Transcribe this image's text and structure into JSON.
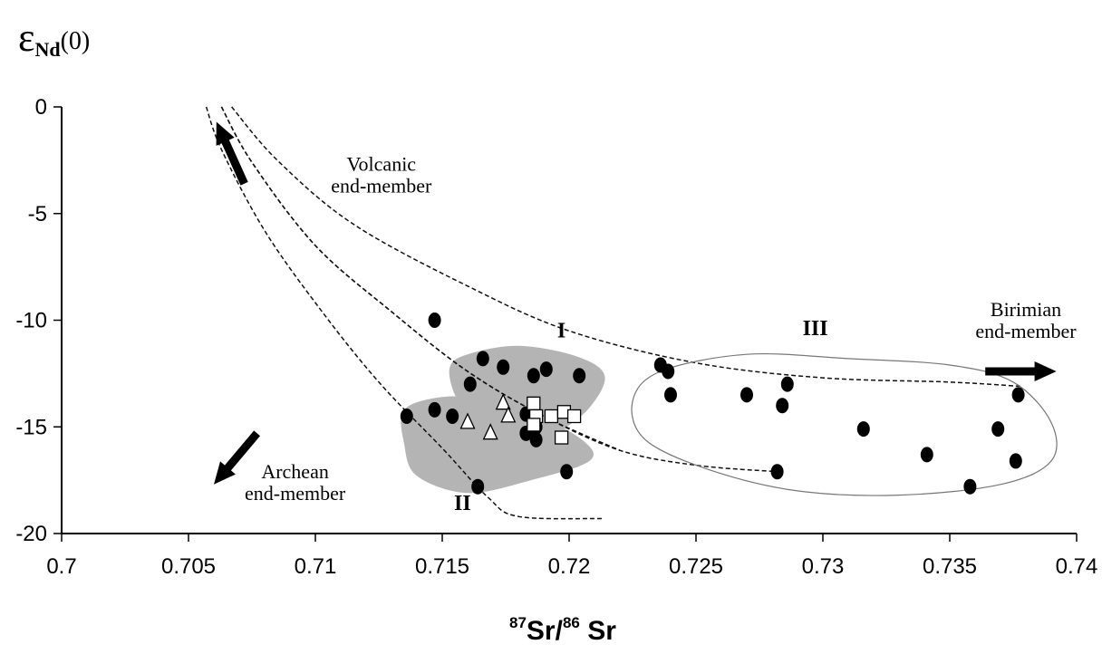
{
  "chart_data": {
    "type": "scatter",
    "title": "",
    "ylabel": {
      "base": "ε",
      "sub": "Nd",
      "suffix": "(0)"
    },
    "xlabel": {
      "sup1": "87",
      "mid": "Sr/",
      "sup2": "86",
      "end": " Sr"
    },
    "xlim": [
      0.7,
      0.74
    ],
    "ylim": [
      -20,
      0
    ],
    "x_ticks": [
      0.7,
      0.705,
      0.71,
      0.715,
      0.72,
      0.725,
      0.73,
      0.735,
      0.74
    ],
    "x_tick_labels": [
      "0.7",
      "0.705",
      "0.71",
      "0.715",
      "0.72",
      "0.725",
      "0.73",
      "0.735",
      "0.74"
    ],
    "y_ticks": [
      0,
      -5,
      -10,
      -15,
      -20
    ],
    "y_tick_labels": [
      "0",
      "-5",
      "-10",
      "-15",
      "-20"
    ],
    "grid": false,
    "series": [
      {
        "marker": "circle",
        "points": [
          [
            0.7147,
            -10.0
          ],
          [
            0.7166,
            -11.8
          ],
          [
            0.7174,
            -12.2
          ],
          [
            0.7161,
            -13.0
          ],
          [
            0.7186,
            -12.6
          ],
          [
            0.7191,
            -12.3
          ],
          [
            0.7204,
            -12.6
          ],
          [
            0.7136,
            -14.5
          ],
          [
            0.7147,
            -14.2
          ],
          [
            0.7154,
            -14.5
          ],
          [
            0.7183,
            -14.4
          ],
          [
            0.7187,
            -15.0
          ],
          [
            0.7183,
            -15.3
          ],
          [
            0.7187,
            -15.6
          ],
          [
            0.7199,
            -17.1
          ],
          [
            0.7164,
            -17.8
          ],
          [
            0.7236,
            -12.1
          ],
          [
            0.7239,
            -12.4
          ],
          [
            0.724,
            -13.5
          ],
          [
            0.727,
            -13.5
          ],
          [
            0.7284,
            -14.0
          ],
          [
            0.7286,
            -13.0
          ],
          [
            0.7282,
            -17.1
          ],
          [
            0.7316,
            -15.1
          ],
          [
            0.7341,
            -16.3
          ],
          [
            0.7358,
            -17.8
          ],
          [
            0.7377,
            -13.5
          ],
          [
            0.7369,
            -15.1
          ],
          [
            0.7376,
            -16.6
          ]
        ]
      },
      {
        "marker": "open-triangle",
        "points": [
          [
            0.7174,
            -13.9
          ],
          [
            0.7176,
            -14.5
          ],
          [
            0.716,
            -14.8
          ],
          [
            0.7169,
            -15.3
          ]
        ]
      },
      {
        "marker": "open-square",
        "points": [
          [
            0.7186,
            -13.9
          ],
          [
            0.7187,
            -14.5
          ],
          [
            0.7186,
            -14.9
          ],
          [
            0.7193,
            -14.5
          ],
          [
            0.7198,
            -14.3
          ],
          [
            0.7202,
            -14.5
          ],
          [
            0.7197,
            -15.5
          ]
        ]
      }
    ],
    "annotations": [
      {
        "text": [
          "Volcanic",
          "end-member"
        ],
        "at": [
          0.7126,
          -3.0
        ]
      },
      {
        "text": [
          "Birimian",
          "end-member"
        ],
        "at": [
          0.738,
          -9.8
        ]
      },
      {
        "text": [
          "Archean",
          "end-member"
        ],
        "at": [
          0.7092,
          -17.4
        ]
      },
      {
        "text": [
          "I"
        ],
        "at": [
          0.7197,
          -10.8
        ],
        "bold": true
      },
      {
        "text": [
          "II"
        ],
        "at": [
          0.7158,
          -18.9
        ],
        "bold": true
      },
      {
        "text": [
          "III"
        ],
        "at": [
          0.7297,
          -10.7
        ],
        "bold": true
      }
    ],
    "arrows": [
      {
        "from": [
          0.7072,
          -3.6
        ],
        "to": [
          0.7061,
          -0.7
        ]
      },
      {
        "from": [
          0.7077,
          -15.3
        ],
        "to": [
          0.706,
          -17.7
        ]
      },
      {
        "from": [
          0.7364,
          -12.4
        ],
        "to": [
          0.7392,
          -12.4
        ]
      }
    ],
    "regions": [
      {
        "name": "I",
        "style": "dashed-curve",
        "upper": [
          [
            0.7067,
            0
          ],
          [
            0.7085,
            -2.5
          ],
          [
            0.7115,
            -5.5
          ],
          [
            0.716,
            -8.4
          ],
          [
            0.72,
            -10.5
          ],
          [
            0.725,
            -12.0
          ],
          [
            0.73,
            -12.7
          ],
          [
            0.735,
            -12.9
          ],
          [
            0.7378,
            -13.1
          ]
        ],
        "lower": [
          [
            0.7063,
            0
          ],
          [
            0.7075,
            -2.6
          ],
          [
            0.71,
            -6.5
          ],
          [
            0.713,
            -9.6
          ],
          [
            0.716,
            -12.4
          ],
          [
            0.719,
            -14.5
          ],
          [
            0.722,
            -16.1
          ],
          [
            0.725,
            -16.8
          ],
          [
            0.7282,
            -17.1
          ]
        ]
      },
      {
        "name": "II",
        "style": "dashed-curve",
        "upper": [
          [
            0.7063,
            0
          ],
          [
            0.7075,
            -2.6
          ],
          [
            0.71,
            -6.5
          ],
          [
            0.713,
            -9.6
          ],
          [
            0.716,
            -12.4
          ],
          [
            0.719,
            -14.5
          ],
          [
            0.722,
            -16.1
          ]
        ],
        "lower": [
          [
            0.7057,
            0
          ],
          [
            0.7063,
            -2.0
          ],
          [
            0.708,
            -5.8
          ],
          [
            0.7102,
            -9.5
          ],
          [
            0.7125,
            -12.9
          ],
          [
            0.715,
            -16.0
          ],
          [
            0.7168,
            -18.3
          ],
          [
            0.718,
            -19.2
          ],
          [
            0.7213,
            -19.3
          ]
        ]
      },
      {
        "name": "III",
        "style": "solid-outline",
        "outline": [
          [
            0.7225,
            -13.8
          ],
          [
            0.7236,
            -12.4
          ],
          [
            0.727,
            -11.6
          ],
          [
            0.731,
            -11.8
          ],
          [
            0.735,
            -12.1
          ],
          [
            0.7375,
            -12.9
          ],
          [
            0.739,
            -14.8
          ],
          [
            0.739,
            -16.6
          ],
          [
            0.737,
            -17.7
          ],
          [
            0.733,
            -18.2
          ],
          [
            0.729,
            -18.0
          ],
          [
            0.7255,
            -17.0
          ],
          [
            0.723,
            -15.6
          ]
        ]
      }
    ],
    "shaded_areas": [
      {
        "outline": [
          [
            0.7135,
            -14.2
          ],
          [
            0.715,
            -13.6
          ],
          [
            0.7165,
            -13.7
          ],
          [
            0.7183,
            -14.2
          ],
          [
            0.7205,
            -15.6
          ],
          [
            0.7208,
            -16.6
          ],
          [
            0.7185,
            -17.5
          ],
          [
            0.716,
            -18.1
          ],
          [
            0.714,
            -17.3
          ],
          [
            0.7135,
            -15.8
          ]
        ]
      },
      {
        "outline": [
          [
            0.7153,
            -12.2
          ],
          [
            0.716,
            -11.6
          ],
          [
            0.718,
            -11.2
          ],
          [
            0.7203,
            -11.7
          ],
          [
            0.7214,
            -12.6
          ],
          [
            0.7208,
            -14.1
          ],
          [
            0.7195,
            -15.3
          ],
          [
            0.7182,
            -15.9
          ],
          [
            0.717,
            -15.6
          ],
          [
            0.7162,
            -14.6
          ],
          [
            0.7155,
            -13.5
          ]
        ]
      }
    ]
  }
}
